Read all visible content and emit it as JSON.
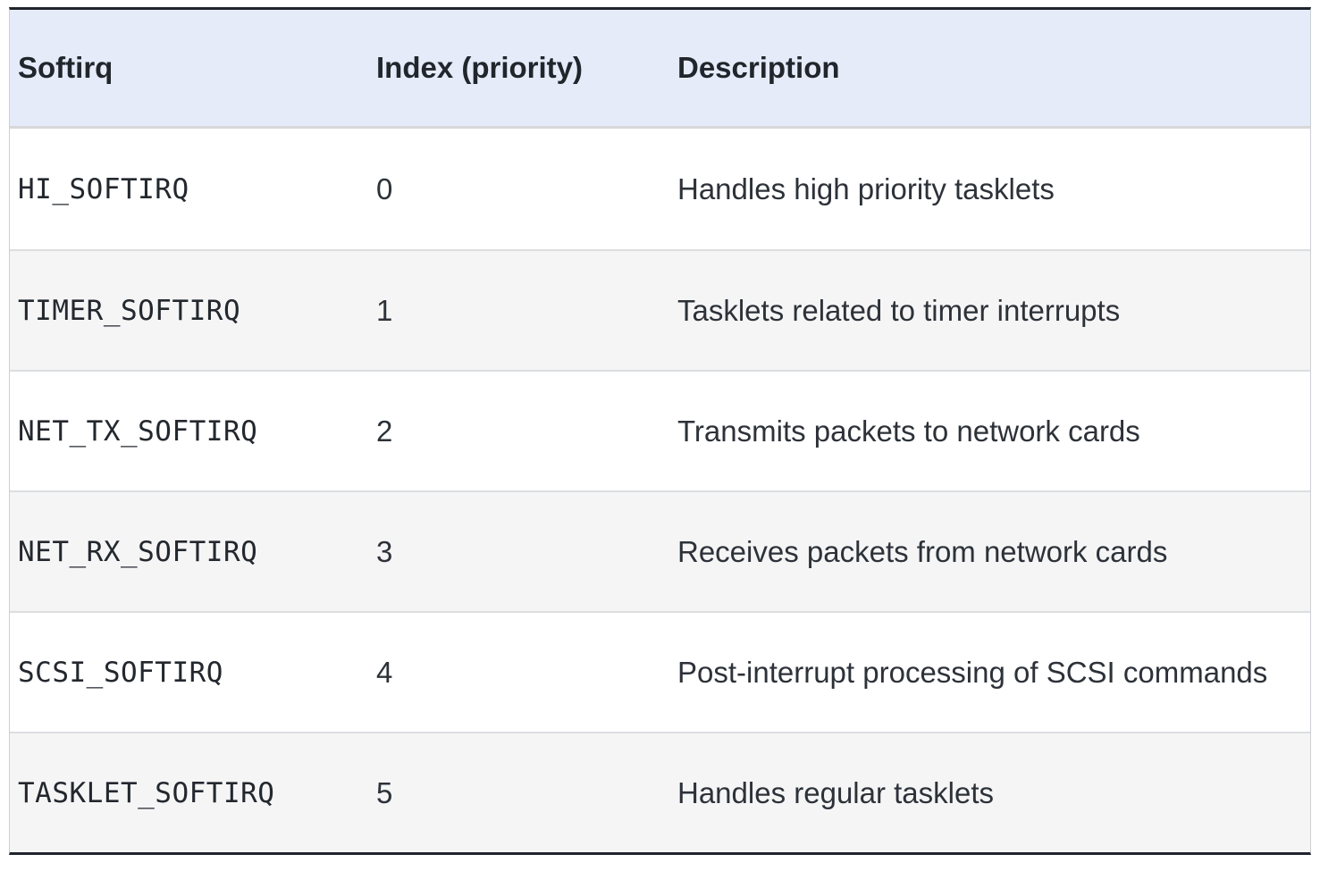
{
  "table": {
    "columns": [
      {
        "key": "softirq",
        "label": "Softirq"
      },
      {
        "key": "index",
        "label": "Index (priority)"
      },
      {
        "key": "description",
        "label": "Description"
      }
    ],
    "rows": [
      {
        "softirq": "HI_SOFTIRQ",
        "index": "0",
        "description": "Handles high priority tasklets"
      },
      {
        "softirq": "TIMER_SOFTIRQ",
        "index": "1",
        "description": "Tasklets related to timer interrupts"
      },
      {
        "softirq": "NET_TX_SOFTIRQ",
        "index": "2",
        "description": "Transmits packets to network cards"
      },
      {
        "softirq": "NET_RX_SOFTIRQ",
        "index": "3",
        "description": "Receives packets from network cards"
      },
      {
        "softirq": "SCSI_SOFTIRQ",
        "index": "4",
        "description": "Post-interrupt processing of SCSI commands"
      },
      {
        "softirq": "TASKLET_SOFTIRQ",
        "index": "5",
        "description": "Handles regular tasklets"
      }
    ],
    "colors": {
      "header_bg": "#e6ebfa",
      "stripe_bg": "#f5f5f6",
      "row_bg": "#ffffff",
      "frame_border": "#20242c",
      "side_border": "#ccd0d4",
      "divider": "#dcdee0",
      "header_text": "#21262c",
      "body_text": "#2d3239",
      "mono_text": "#23282e"
    }
  }
}
